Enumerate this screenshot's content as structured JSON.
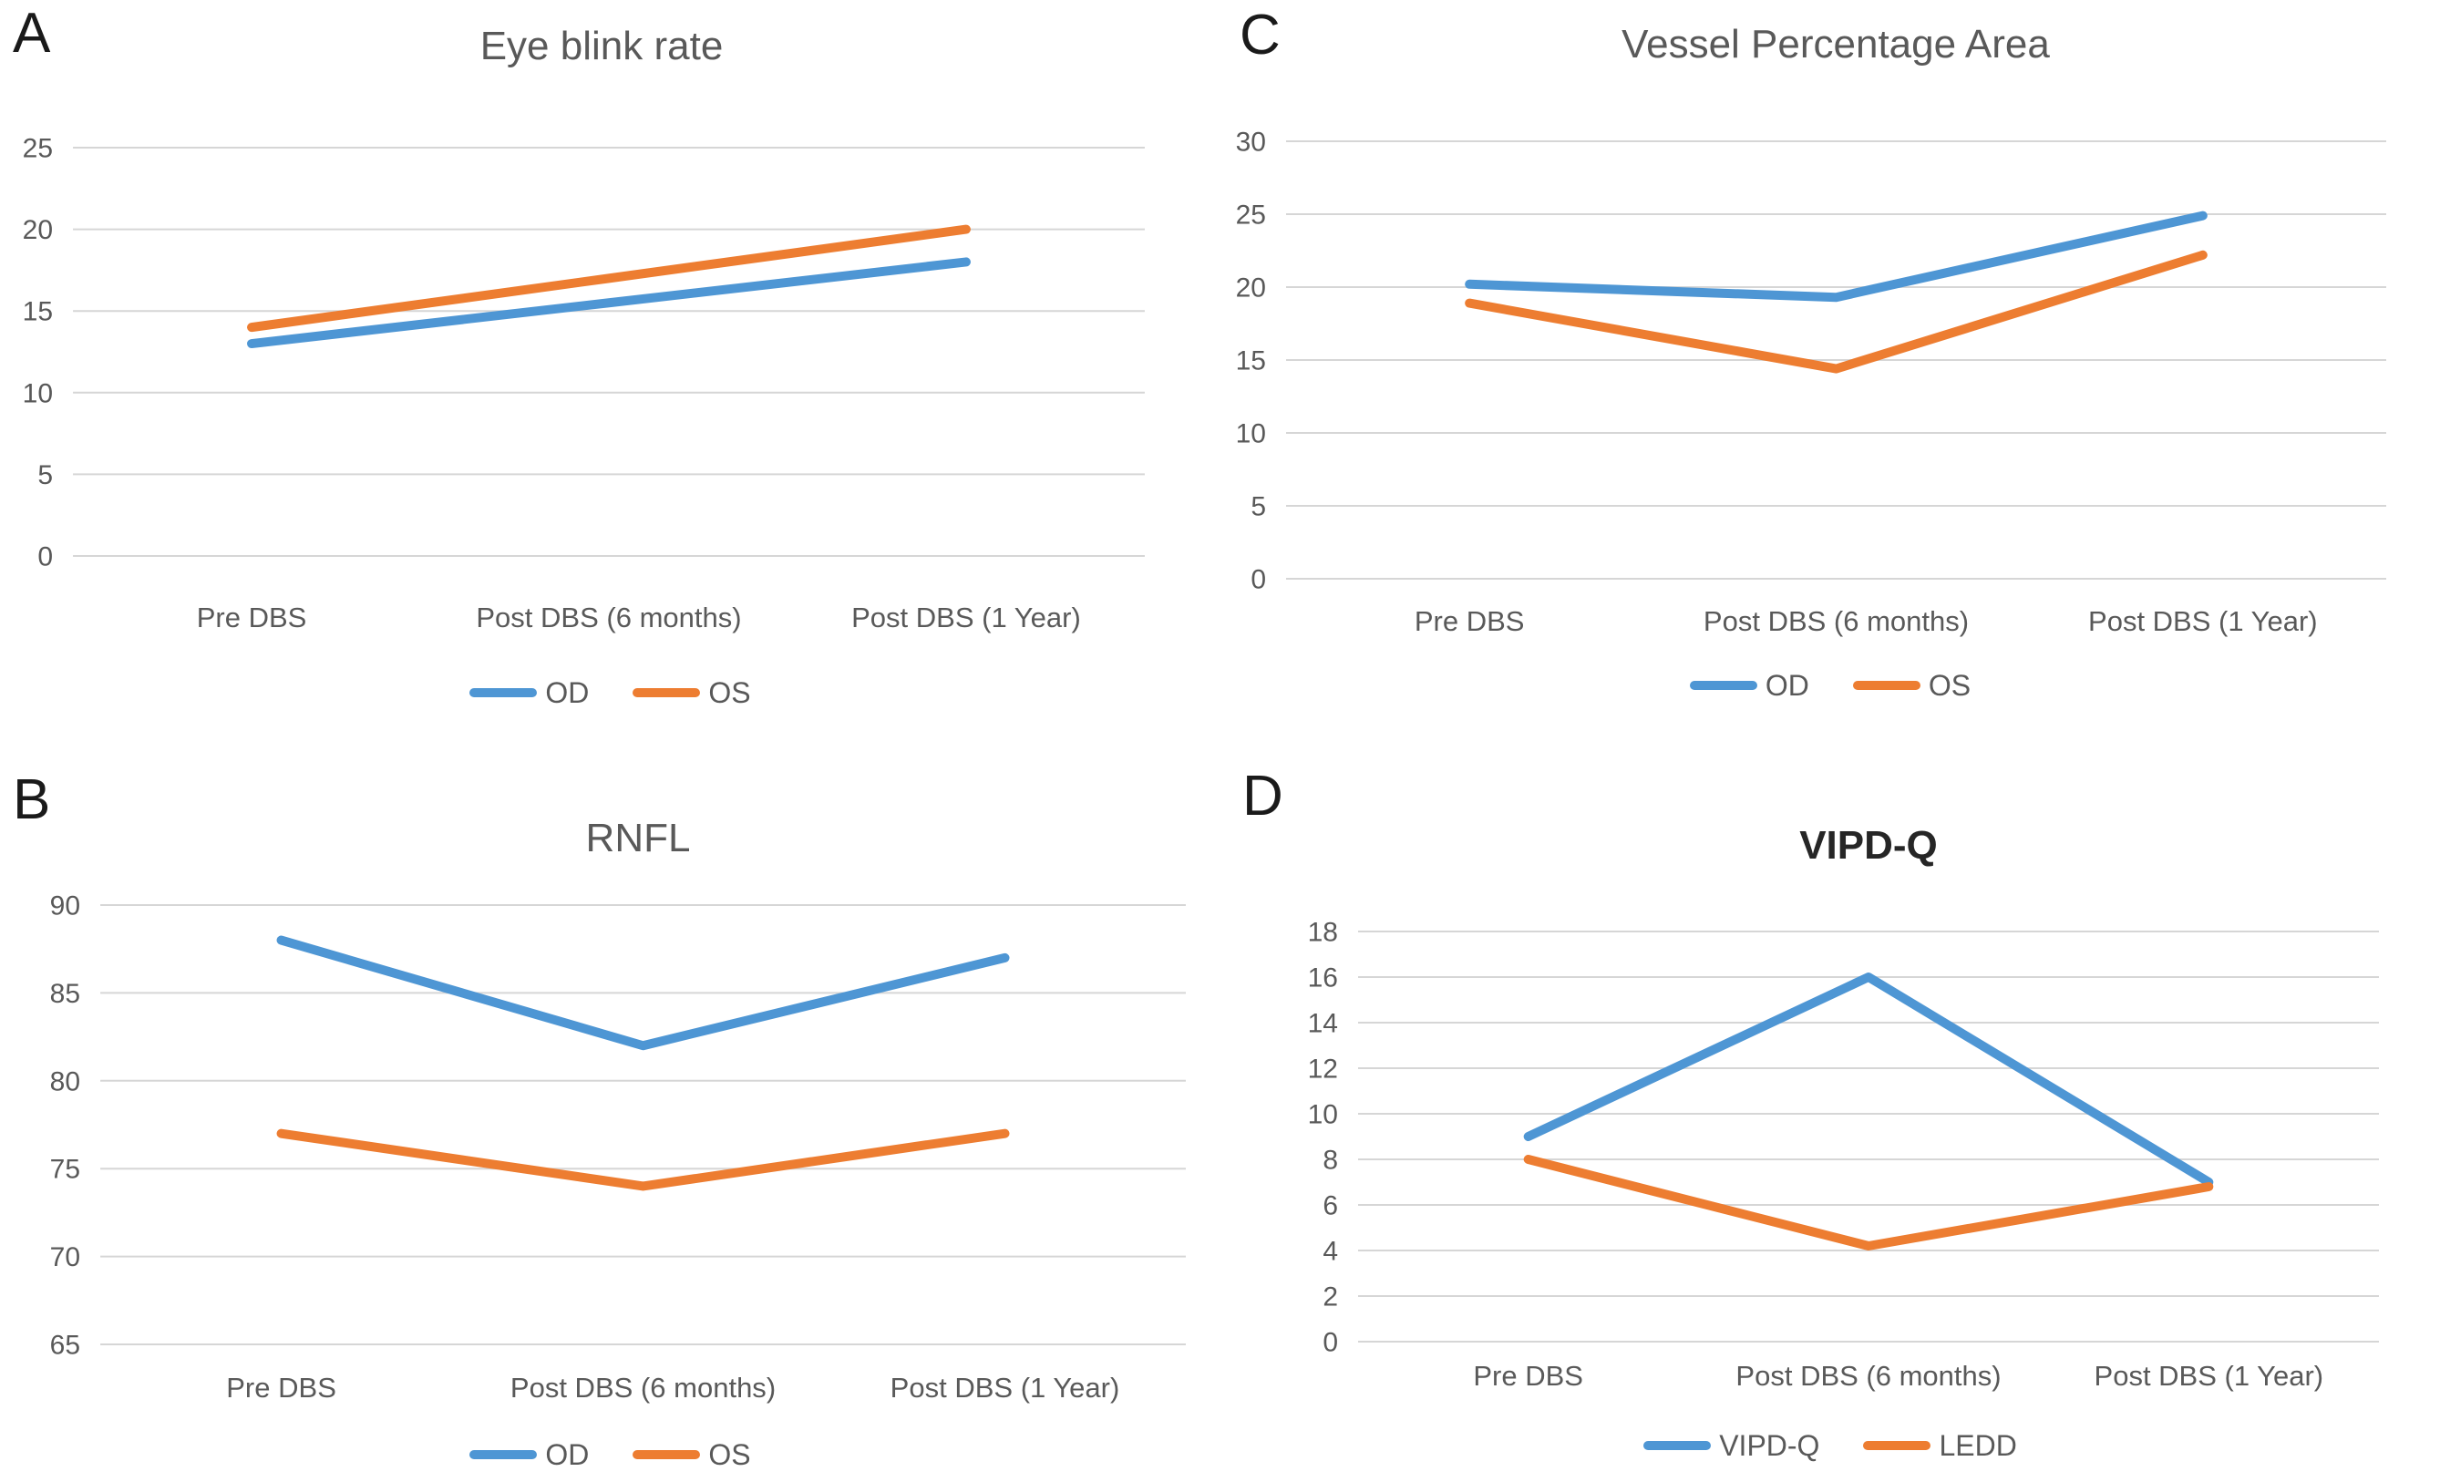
{
  "figure": {
    "background": "#ffffff",
    "panels_order": [
      "A",
      "C",
      "B",
      "D"
    ]
  },
  "colors": {
    "blue": "#4E96D4",
    "orange": "#ED7D31",
    "gridline": "#D6D6D6",
    "tick_text": "#595959",
    "category_text": "#595959",
    "title_text": "#595959",
    "bold_title_text": "#262626",
    "panel_letter": "#1a1a1a"
  },
  "chart_data": [
    {
      "panel_letter": "A",
      "type": "line",
      "title": "Eye blink rate",
      "title_bold": false,
      "categories": [
        "Pre DBS",
        "Post DBS (6 months)",
        "Post DBS (1 Year)"
      ],
      "series": [
        {
          "name": "OD",
          "color": "blue",
          "values": [
            13,
            15.5,
            18
          ]
        },
        {
          "name": "OS",
          "color": "orange",
          "values": [
            14,
            17,
            20
          ]
        }
      ],
      "ylim": [
        0,
        25
      ],
      "ytick_step": 5,
      "grid": true,
      "legend_position": "bottom"
    },
    {
      "panel_letter": "C",
      "type": "line",
      "title": "Vessel Percentage Area",
      "title_bold": false,
      "categories": [
        "Pre DBS",
        "Post DBS (6 months)",
        "Post DBS (1 Year)"
      ],
      "series": [
        {
          "name": "OD",
          "color": "blue",
          "values": [
            20.2,
            19.3,
            24.9
          ]
        },
        {
          "name": "OS",
          "color": "orange",
          "values": [
            18.9,
            14.4,
            22.2
          ]
        }
      ],
      "ylim": [
        0,
        30
      ],
      "ytick_step": 5,
      "grid": true,
      "legend_position": "bottom"
    },
    {
      "panel_letter": "B",
      "type": "line",
      "title": "RNFL",
      "title_bold": false,
      "categories": [
        "Pre DBS",
        "Post DBS (6 months)",
        "Post DBS (1 Year)"
      ],
      "series": [
        {
          "name": "OD",
          "color": "blue",
          "values": [
            88,
            82,
            87
          ]
        },
        {
          "name": "OS",
          "color": "orange",
          "values": [
            77,
            74,
            77
          ]
        }
      ],
      "ylim": [
        65,
        90
      ],
      "ytick_step": 5,
      "grid": true,
      "legend_position": "bottom"
    },
    {
      "panel_letter": "D",
      "type": "line",
      "title": "VIPD-Q",
      "title_bold": true,
      "categories": [
        "Pre DBS",
        "Post DBS (6 months)",
        "Post DBS (1 Year)"
      ],
      "series": [
        {
          "name": "VIPD-Q",
          "color": "blue",
          "values": [
            9,
            16,
            7
          ]
        },
        {
          "name": "LEDD",
          "color": "orange",
          "values": [
            8,
            4.2,
            6.8
          ]
        }
      ],
      "ylim": [
        0,
        18
      ],
      "ytick_step": 2,
      "grid": true,
      "legend_position": "bottom"
    }
  ]
}
